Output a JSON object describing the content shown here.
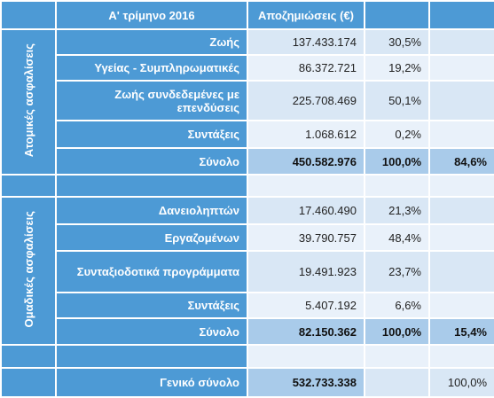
{
  "header": {
    "period": "Α' τρίμηνο 2016",
    "amount": "Αποζημιώσεις (€)"
  },
  "groups": [
    {
      "label": "Ατομικές ασφαλίσεις",
      "rows": [
        [
          "Ζωής",
          "137.433.174",
          "30,5%"
        ],
        [
          "Υγείας - Συμπληρωματικές",
          "86.372.721",
          "19,2%"
        ],
        [
          "Ζωής συνδεδεμένες με επενδύσεις",
          "225.708.469",
          "50,1%"
        ],
        [
          "Συντάξεις",
          "1.068.612",
          "0,2%"
        ]
      ],
      "total": [
        "Σύνολο",
        "450.582.976",
        "100,0%",
        "84,6%"
      ]
    },
    {
      "label": "Ομαδικές ασφαλίσεις",
      "rows": [
        [
          "Δανειοληπτών",
          "17.460.490",
          "21,3%"
        ],
        [
          "Εργαζομένων",
          "39.790.757",
          "48,4%"
        ],
        [
          "Συνταξιοδοτικά προγράμματα",
          "19.491.923",
          "23,7%"
        ],
        [
          "Συντάξεις",
          "5.407.192",
          "6,6%"
        ]
      ],
      "total": [
        "Σύνολο",
        "82.150.362",
        "100,0%",
        "15,4%"
      ]
    }
  ],
  "grand_total": {
    "label": "Γενικό σύνολο",
    "amount": "532.733.338",
    "share": "100,0%"
  }
}
